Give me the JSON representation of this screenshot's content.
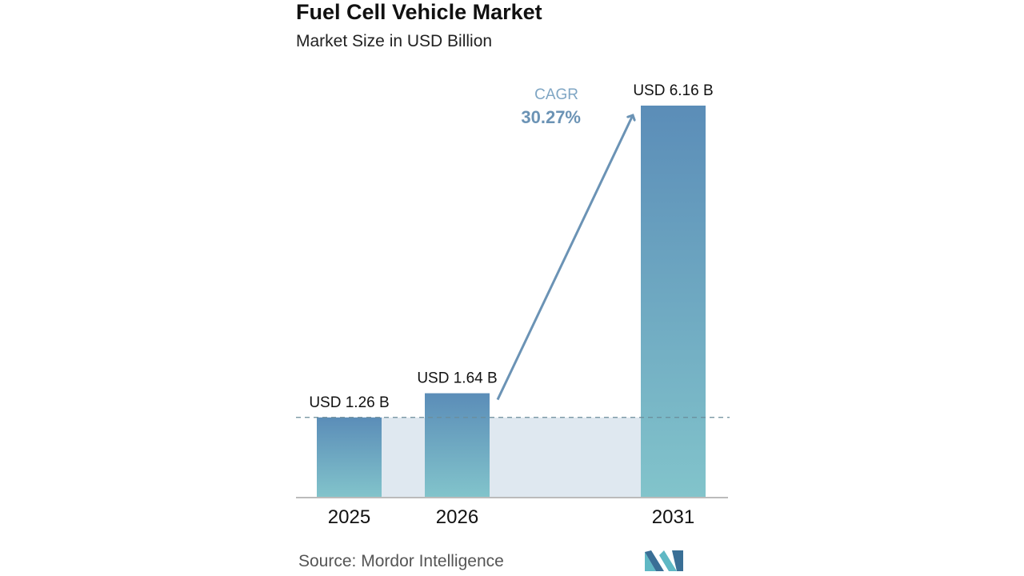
{
  "header": {
    "title": "Fuel Cell Vehicle Market",
    "subtitle": "Market Size in USD Billion"
  },
  "footer": {
    "source_label": "Source:",
    "source_name": "Mordor Intelligence",
    "logo_icon": "mordor-intelligence-logo-icon"
  },
  "colors": {
    "bar_top": "#5b8db8",
    "bar_bottom": "#82c4cb",
    "band": "#dfe8f0",
    "arrow": "#6b93b5",
    "cagr_label": "#7fa6c4",
    "cagr_value": "#6b93b5",
    "dash_line": "#6b8c9a",
    "axis": "#bbbbbb",
    "logo_dark": "#3a6f96",
    "logo_light": "#5fb8c4"
  },
  "chart_data": {
    "type": "bar",
    "title": "Fuel Cell Vehicle Market",
    "subtitle": "Market Size in USD Billion",
    "categories": [
      "2025",
      "2026",
      "2031"
    ],
    "values": [
      1.26,
      1.64,
      6.16
    ],
    "data_labels": [
      "USD 1.26 B",
      "USD 1.64 B",
      "USD 6.16 B"
    ],
    "ylim": [
      0,
      6.16
    ],
    "grid": false,
    "reference_line_value": 1.26,
    "annotation": {
      "label": "CAGR",
      "value": "30.27%"
    }
  }
}
